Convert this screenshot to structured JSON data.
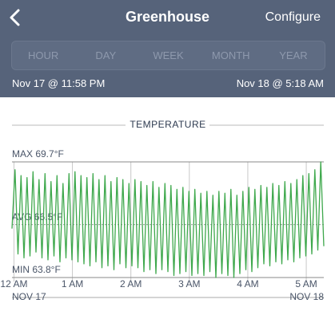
{
  "header": {
    "title": "Greenhouse",
    "action": "Configure"
  },
  "tabs": [
    "HOUR",
    "DAY",
    "WEEK",
    "MONTH",
    "YEAR"
  ],
  "range": {
    "start": "Nov 17 @ 11:58 PM",
    "end": "Nov 18 @ 5:18 AM"
  },
  "chart_data": {
    "type": "line",
    "title": "TEMPERATURE",
    "color": "#3ea84c",
    "ylim": [
      63.8,
      69.7
    ],
    "xlim": [
      -2,
      318
    ],
    "xticks": [
      {
        "value": 0,
        "label": "12 AM"
      },
      {
        "value": 60,
        "label": "1 AM"
      },
      {
        "value": 120,
        "label": "2 AM"
      },
      {
        "value": 180,
        "label": "3 AM"
      },
      {
        "value": 240,
        "label": "4 AM"
      },
      {
        "value": 300,
        "label": "5 AM"
      }
    ],
    "reference_lines": [
      {
        "value": 69.7,
        "label": "MAX 69.7°F"
      },
      {
        "value": 66.5,
        "label": "AVG 66.5°F"
      },
      {
        "value": 63.8,
        "label": "MIN 63.8°F"
      }
    ],
    "date_labels": [
      "NOV 17",
      "NOV 18"
    ],
    "values": [
      66.3,
      69.3,
      65.0,
      69.0,
      64.8,
      68.9,
      64.9,
      69.2,
      65.1,
      68.8,
      64.8,
      69.1,
      64.7,
      68.7,
      64.9,
      69.0,
      64.6,
      68.6,
      64.8,
      69.1,
      64.7,
      69.2,
      64.6,
      69.0,
      64.5,
      68.9,
      64.4,
      69.1,
      64.6,
      68.8,
      64.3,
      69.0,
      64.4,
      68.7,
      64.2,
      68.9,
      64.5,
      68.8,
      64.3,
      68.6,
      64.4,
      68.8,
      64.3,
      68.7,
      64.1,
      68.5,
      64.2,
      68.7,
      64.0,
      68.4,
      64.2,
      68.6,
      64.1,
      68.5,
      63.9,
      68.3,
      64.0,
      68.4,
      64.1,
      68.2,
      63.9,
      68.3,
      64.0,
      68.1,
      63.9,
      68.2,
      64.1,
      68.0,
      63.8,
      68.2,
      64.0,
      68.1,
      63.9,
      68.3,
      63.8,
      68.0,
      64.0,
      68.2,
      64.2,
      68.4,
      64.1,
      68.3,
      64.3,
      68.5,
      64.5,
      68.4,
      64.4,
      68.6,
      64.6,
      68.5,
      64.5,
      68.7,
      64.7,
      68.6,
      64.6,
      68.8,
      64.8,
      69.0,
      64.9,
      69.1,
      65.0,
      69.3,
      65.2,
      69.7,
      65.4
    ]
  }
}
